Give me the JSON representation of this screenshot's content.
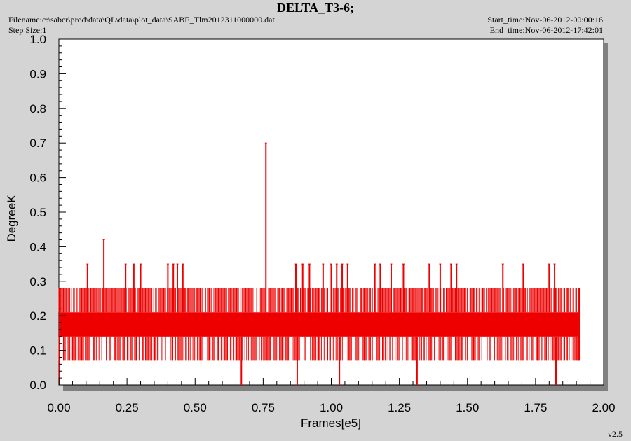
{
  "header": {
    "title": "DELTA_T3-6;",
    "filename": "Filename:c:\\saber\\prod\\data\\QL\\data\\plot_data\\SABE_Tlm2012311000000.dat",
    "step_size": "Step Size:1",
    "start_time": "Start_time:Nov-06-2012-00:00:16",
    "end_time": "End_time:Nov-06-2012-17:42:01"
  },
  "footer": {
    "version": "v2.5"
  },
  "colors": {
    "series": "#ee0000",
    "plot_bg": "#ffffff",
    "page_bg": "#d4d4d4"
  },
  "chart_data": {
    "type": "line",
    "xlabel": "Frames[e5]",
    "ylabel": "DegreeK",
    "xlim": [
      0,
      2.0
    ],
    "ylim": [
      0,
      1.0
    ],
    "x_ticks": [
      "0.00",
      "0.25",
      "0.50",
      "0.75",
      "1.00",
      "1.25",
      "1.50",
      "1.75",
      "2.00"
    ],
    "y_ticks": [
      "0.0",
      "0.1",
      "0.2",
      "0.3",
      "0.4",
      "0.5",
      "0.6",
      "0.7",
      "0.8",
      "0.9",
      "1.0"
    ],
    "grid": false,
    "series": [
      {
        "color": "#ee0000",
        "x_range": [
          0,
          1.91
        ],
        "levels": [
          0.07,
          0.14,
          0.21,
          0.28,
          0.35,
          0.42,
          0.7
        ],
        "band": [
          0.07,
          0.28
        ],
        "spikes": [
          {
            "x": 0.105,
            "y": 0.35
          },
          {
            "x": 0.165,
            "y": 0.42
          },
          {
            "x": 0.245,
            "y": 0.35
          },
          {
            "x": 0.275,
            "y": 0.35
          },
          {
            "x": 0.3,
            "y": 0.35
          },
          {
            "x": 0.4,
            "y": 0.35
          },
          {
            "x": 0.42,
            "y": 0.35
          },
          {
            "x": 0.435,
            "y": 0.35
          },
          {
            "x": 0.455,
            "y": 0.35
          },
          {
            "x": 0.76,
            "y": 0.7
          },
          {
            "x": 0.87,
            "y": 0.35
          },
          {
            "x": 0.895,
            "y": 0.35
          },
          {
            "x": 0.92,
            "y": 0.35
          },
          {
            "x": 0.97,
            "y": 0.35
          },
          {
            "x": 1.0,
            "y": 0.35
          },
          {
            "x": 1.02,
            "y": 0.35
          },
          {
            "x": 1.04,
            "y": 0.35
          },
          {
            "x": 1.06,
            "y": 0.35
          },
          {
            "x": 1.16,
            "y": 0.35
          },
          {
            "x": 1.18,
            "y": 0.35
          },
          {
            "x": 1.22,
            "y": 0.35
          },
          {
            "x": 1.265,
            "y": 0.35
          },
          {
            "x": 1.36,
            "y": 0.35
          },
          {
            "x": 1.4,
            "y": 0.35
          },
          {
            "x": 1.44,
            "y": 0.35
          },
          {
            "x": 1.46,
            "y": 0.35
          },
          {
            "x": 1.63,
            "y": 0.35
          },
          {
            "x": 1.705,
            "y": 0.35
          },
          {
            "x": 1.8,
            "y": 0.35
          },
          {
            "x": 1.82,
            "y": 0.35
          }
        ],
        "dips": [
          {
            "x": 0.002,
            "y": 0.0
          },
          {
            "x": 0.67,
            "y": 0.0
          },
          {
            "x": 0.875,
            "y": 0.0
          },
          {
            "x": 1.03,
            "y": 0.0
          },
          {
            "x": 1.315,
            "y": 0.0
          },
          {
            "x": 1.825,
            "y": 0.0
          }
        ]
      }
    ]
  }
}
